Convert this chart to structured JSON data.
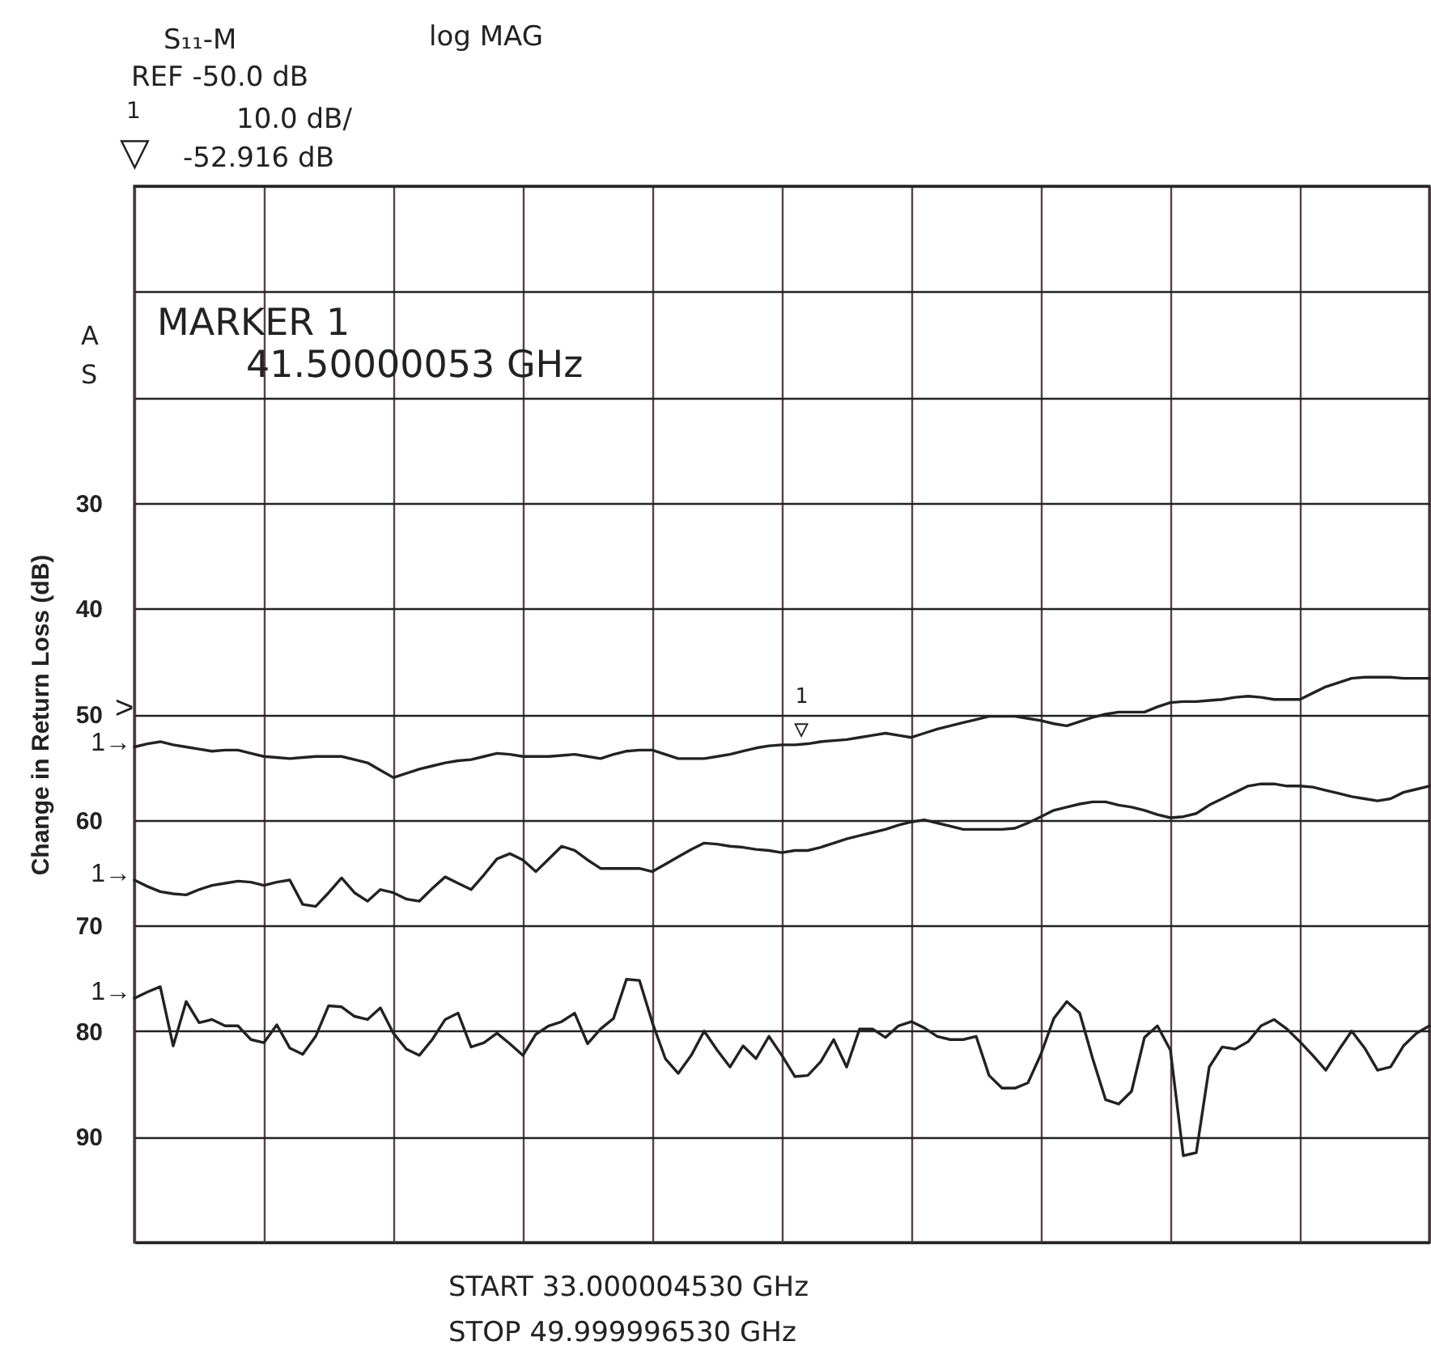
{
  "chart_data": {
    "type": "line",
    "ylabel": "Change in Return Loss (dB)",
    "categories": [
      null,
      null,
      null,
      null,
      null,
      null,
      null,
      null,
      null,
      null,
      null,
      null,
      null,
      null,
      null,
      null,
      null,
      null,
      null,
      null,
      null,
      null,
      null,
      null,
      null,
      null,
      null,
      null,
      null,
      null,
      null,
      null,
      null,
      null,
      null,
      null,
      null,
      null,
      null,
      null,
      null,
      null,
      null,
      null,
      null,
      null,
      null,
      null,
      null,
      null,
      null,
      null,
      null,
      null,
      null,
      null,
      null,
      null,
      null,
      null,
      null,
      null,
      null,
      null,
      null,
      null,
      null,
      null,
      null,
      null,
      null,
      null,
      null,
      null,
      null,
      null,
      null,
      null,
      null,
      null,
      null,
      null,
      null,
      null,
      null,
      null,
      null,
      null,
      null,
      null,
      null,
      null,
      null,
      null,
      null,
      null,
      null,
      null,
      null,
      null,
      null
    ],
    "series": [
      {
        "color": "#222222",
        "values": [
          53.1,
          52.8,
          52.6,
          52.9,
          53.1,
          53.3,
          53.5,
          53.4,
          53.4,
          53.7,
          54.0,
          54.1,
          54.2,
          54.1,
          54.0,
          54.0,
          54.0,
          54.3,
          54.6,
          55.3,
          56.0,
          55.6,
          55.2,
          54.9,
          54.6,
          54.4,
          54.3,
          54.0,
          53.7,
          53.8,
          54.0,
          54.0,
          54.0,
          53.9,
          53.8,
          54.0,
          54.2,
          53.8,
          53.5,
          53.4,
          53.4,
          53.8,
          54.2,
          54.2,
          54.2,
          54.0,
          53.8,
          53.5,
          53.2,
          53.0,
          52.9,
          52.9,
          52.8,
          52.6,
          52.5,
          52.4,
          52.2,
          52.0,
          51.8,
          52.0,
          52.2,
          51.8,
          51.4,
          51.1,
          50.8,
          50.5,
          50.2,
          50.2,
          50.2,
          50.4,
          50.6,
          50.9,
          51.1,
          50.7,
          50.3,
          50.0,
          49.8,
          49.8,
          49.8,
          49.3,
          48.9,
          48.8,
          48.8,
          48.7,
          48.6,
          48.4,
          48.3,
          48.4,
          48.6,
          48.6,
          48.6,
          48.0,
          47.4,
          47.0,
          46.6,
          46.5,
          46.5,
          46.5,
          46.6,
          46.6,
          46.6
        ]
      },
      {
        "color": "#222222",
        "values": [
          65.7,
          66.3,
          66.8,
          67.0,
          67.1,
          66.6,
          66.2,
          66.0,
          65.8,
          65.9,
          66.2,
          65.9,
          65.7,
          68.0,
          68.2,
          66.9,
          65.5,
          66.9,
          67.7,
          66.6,
          66.9,
          67.5,
          67.7,
          66.5,
          65.4,
          66.0,
          66.6,
          65.2,
          63.7,
          63.2,
          63.8,
          64.9,
          63.7,
          62.5,
          62.9,
          63.8,
          64.6,
          64.6,
          64.6,
          64.6,
          64.9,
          64.2,
          63.5,
          62.8,
          62.2,
          62.3,
          62.5,
          62.6,
          62.8,
          62.9,
          63.1,
          62.9,
          62.9,
          62.6,
          62.2,
          61.8,
          61.5,
          61.2,
          60.9,
          60.5,
          60.2,
          60.0,
          60.3,
          60.6,
          60.9,
          60.9,
          60.9,
          60.9,
          60.8,
          60.3,
          59.7,
          59.1,
          58.8,
          58.5,
          58.3,
          58.3,
          58.6,
          58.8,
          59.1,
          59.5,
          59.8,
          59.7,
          59.4,
          58.6,
          58.0,
          57.4,
          56.8,
          56.6,
          56.6,
          56.8,
          56.8,
          56.9,
          57.2,
          57.5,
          57.8,
          58.0,
          58.2,
          58.0,
          57.4,
          57.1,
          56.8
        ]
      },
      {
        "color": "#222222",
        "values": [
          76.9,
          76.3,
          75.8,
          81.4,
          77.2,
          79.2,
          78.9,
          79.5,
          79.5,
          80.8,
          81.1,
          79.4,
          81.6,
          82.2,
          80.5,
          77.6,
          77.7,
          78.6,
          78.9,
          77.8,
          80.2,
          81.7,
          82.3,
          80.8,
          78.9,
          78.3,
          81.5,
          81.1,
          80.2,
          81.2,
          82.3,
          80.3,
          79.5,
          79.1,
          78.3,
          81.2,
          79.8,
          78.8,
          75.1,
          75.2,
          79.2,
          82.6,
          84.0,
          82.3,
          80.0,
          81.8,
          83.4,
          81.4,
          82.6,
          80.5,
          82.3,
          84.3,
          84.2,
          82.9,
          80.8,
          83.4,
          79.8,
          79.8,
          80.6,
          79.5,
          79.1,
          79.7,
          80.5,
          80.8,
          80.8,
          80.5,
          84.2,
          85.4,
          85.4,
          84.9,
          82.2,
          78.8,
          77.2,
          78.3,
          82.6,
          86.5,
          86.9,
          85.7,
          80.6,
          79.5,
          81.8,
          91.8,
          91.5,
          83.4,
          81.5,
          81.7,
          81.0,
          79.5,
          78.9,
          79.8,
          81.0,
          82.3,
          83.7,
          81.8,
          80.0,
          81.6,
          83.7,
          83.4,
          81.4,
          80.2,
          79.5
        ]
      }
    ],
    "ylim": [
      100,
      0
    ],
    "yticks": [
      {
        "value": 0,
        "label": null
      },
      {
        "value": 10,
        "label": null
      },
      {
        "value": 20,
        "label": null
      },
      30,
      40,
      50,
      60,
      70,
      80,
      90,
      {
        "value": 100,
        "label": null
      }
    ],
    "grid": true,
    "tick_labels": "y",
    "annotations": [
      "S₁₁-M",
      "log MAG",
      "REF -50.0 dB",
      "1",
      "▽",
      "10.0 dB/",
      "-52.916 dB",
      "MARKER 1",
      "41.50000053 GHz",
      "A",
      "S",
      "START 33.000004530 GHz",
      "STOP 49.999996530 GHz",
      ">",
      "1→",
      "1→",
      "1→",
      {
        "text": "1",
        "y": 52.916
      },
      {
        "text": "▽",
        "y": 52.916
      }
    ]
  }
}
